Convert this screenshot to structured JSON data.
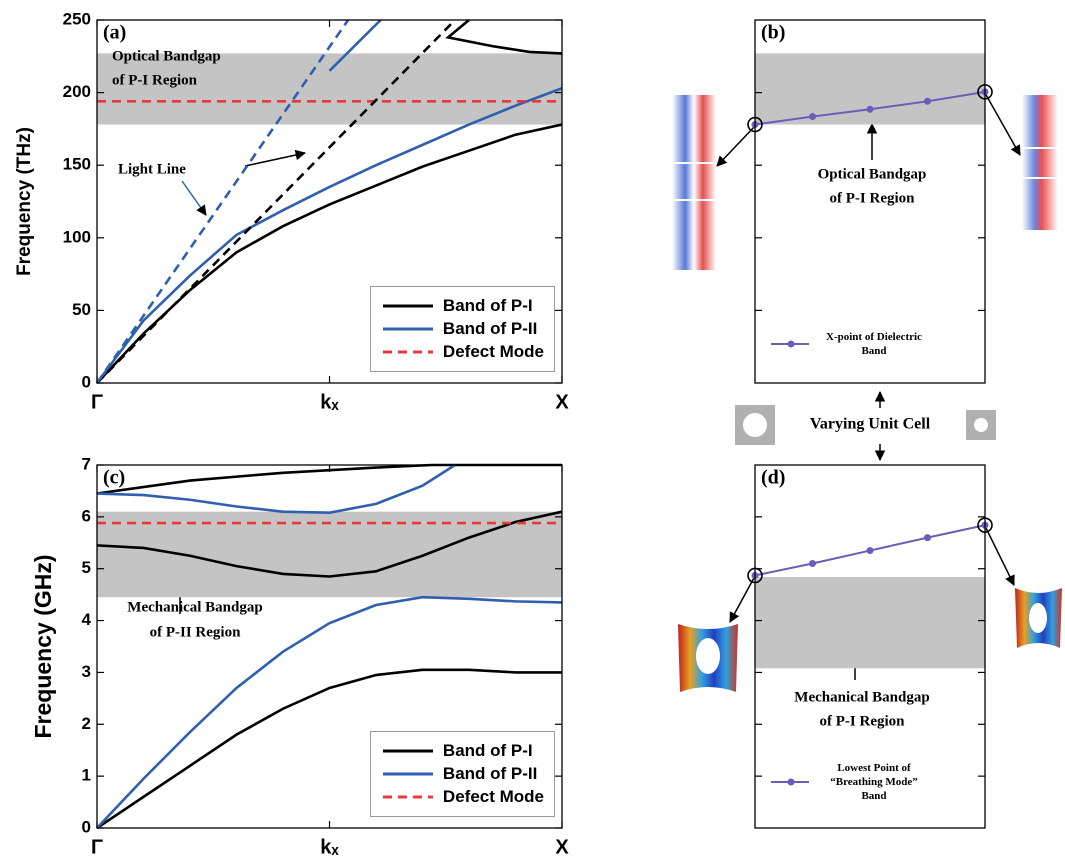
{
  "chart_data": [
    {
      "type": "line",
      "label": "(a)",
      "ylabel": "Frequency (THz)",
      "xlim": [
        0,
        1
      ],
      "xticks": [
        {
          "value": 0,
          "label": "Γ"
        },
        {
          "value": 0.5,
          "label": "kₓ"
        },
        {
          "value": 1,
          "label": "X"
        }
      ],
      "ylim": [
        0,
        250
      ],
      "yticks": [
        0,
        50,
        100,
        150,
        200,
        250
      ],
      "band": [
        178,
        227
      ],
      "band_color": "#c4c4c4",
      "legend": "lower right",
      "legend_frame": true,
      "series": [
        {
          "name": "Band of P-I",
          "color": "#000000",
          "x": [
            0,
            0.1,
            0.2,
            0.3,
            0.4,
            0.5,
            0.6,
            0.7,
            0.8,
            0.9,
            1,
            null,
            0.8,
            0.755,
            0.85,
            0.93,
            1
          ],
          "values": [
            0,
            34,
            64,
            90,
            108,
            123,
            136,
            149,
            160,
            171,
            178,
            null,
            250,
            238,
            232,
            228,
            227
          ]
        },
        {
          "name": "Band of P-II",
          "color": "#2e5fb0",
          "x": [
            0,
            0.1,
            0.2,
            0.3,
            0.4,
            0.5,
            0.6,
            0.7,
            0.8,
            0.9,
            1,
            null,
            0.5,
            0.61
          ],
          "values": [
            0,
            43,
            74,
            102,
            119,
            135,
            150,
            164,
            178,
            191,
            203,
            null,
            215,
            250
          ]
        },
        {
          "name": "Defect Mode",
          "color": "#e8383d",
          "dash": true,
          "x": [
            0,
            1
          ],
          "values": [
            194,
            194
          ]
        },
        {
          "color": "#000000",
          "dash": true,
          "x": [
            0,
            0.77
          ],
          "values": [
            0,
            250
          ]
        },
        {
          "color": "#2e5fb0",
          "dash": true,
          "x": [
            0,
            0.54
          ],
          "values": [
            0,
            250
          ]
        }
      ],
      "annotations": [
        {
          "lines": [
            "Optical Bandgap",
            "of P-I Region"
          ]
        },
        {
          "lines": [
            "Light Line"
          ]
        }
      ]
    },
    {
      "type": "line",
      "label": "(b)",
      "xlim": [
        0,
        1
      ],
      "ylim": [
        0,
        250
      ],
      "yticks": [
        50,
        100,
        150,
        200
      ],
      "show_tick_labels": false,
      "band": [
        178,
        227
      ],
      "band_color": "#c4c4c4",
      "legend": "lower left",
      "legend_frame": false,
      "end_rings": true,
      "series": [
        {
          "name": "X-point of Dielectric Band",
          "color": "#6a5cb8",
          "markers": true,
          "x": [
            0,
            0.25,
            0.5,
            0.75,
            1
          ],
          "values": [
            178,
            183.5,
            188.5,
            194,
            200.5
          ]
        }
      ],
      "annotations": [
        {
          "lines": [
            "Optical Bandgap",
            "of P-I Region"
          ]
        }
      ]
    },
    {
      "type": "line",
      "label": "(c)",
      "ylabel": "Frequency (GHz)",
      "xlim": [
        0,
        1
      ],
      "xticks": [
        {
          "value": 0,
          "label": "Γ"
        },
        {
          "value": 0.5,
          "label": "kₓ"
        },
        {
          "value": 1,
          "label": "X"
        }
      ],
      "ylim": [
        0,
        7
      ],
      "yticks": [
        0,
        1,
        2,
        3,
        4,
        5,
        6,
        7
      ],
      "band": [
        4.45,
        6.1
      ],
      "band_color": "#c4c4c4",
      "legend": "lower right",
      "legend_frame": true,
      "series": [
        {
          "name": "Band of P-I",
          "color": "#000000",
          "x": [
            0,
            0.1,
            0.2,
            0.3,
            0.4,
            0.5,
            0.6,
            0.7,
            0.8,
            0.9,
            1,
            null,
            0,
            0.1,
            0.2,
            0.3,
            0.4,
            0.5,
            0.6,
            0.7,
            0.8,
            0.9,
            1,
            null,
            0,
            0.2,
            0.4,
            0.6,
            0.72,
            1
          ],
          "values": [
            0,
            0.6,
            1.2,
            1.8,
            2.3,
            2.7,
            2.95,
            3.05,
            3.05,
            3.0,
            3.0,
            null,
            5.45,
            5.4,
            5.25,
            5.05,
            4.9,
            4.85,
            4.95,
            5.25,
            5.6,
            5.9,
            6.1,
            null,
            6.45,
            6.7,
            6.85,
            6.95,
            7,
            7
          ]
        },
        {
          "name": "Band of P-II",
          "color": "#2e5fb0",
          "x": [
            0,
            0.1,
            0.2,
            0.3,
            0.4,
            0.5,
            0.6,
            0.7,
            0.8,
            0.9,
            1,
            null,
            0,
            0.1,
            0.2,
            0.3,
            0.4,
            0.5,
            0.6,
            0.7,
            0.77
          ],
          "values": [
            0,
            0.95,
            1.85,
            2.7,
            3.4,
            3.95,
            4.3,
            4.45,
            4.42,
            4.37,
            4.35,
            null,
            6.45,
            6.42,
            6.33,
            6.2,
            6.1,
            6.08,
            6.25,
            6.6,
            7
          ]
        },
        {
          "name": "Defect Mode",
          "color": "#e8383d",
          "dash": true,
          "x": [
            0,
            1
          ],
          "values": [
            5.88,
            5.88
          ]
        }
      ],
      "annotations": [
        {
          "lines": [
            "Mechanical Bandgap",
            "of P-II Region"
          ]
        }
      ]
    },
    {
      "type": "line",
      "label": "(d)",
      "xlim": [
        0,
        1
      ],
      "ylim": [
        0,
        7
      ],
      "yticks": [
        1,
        2,
        3,
        4,
        5,
        6
      ],
      "show_tick_labels": false,
      "band": [
        3.08,
        4.84
      ],
      "band_color": "#c4c4c4",
      "legend": "lower left",
      "legend_frame": false,
      "end_rings": true,
      "series": [
        {
          "name": "Lowest Point of “Breathing Mode” Band",
          "color": "#6a5cb8",
          "markers": true,
          "x": [
            0,
            0.25,
            0.5,
            0.75,
            1
          ],
          "values": [
            4.87,
            5.1,
            5.35,
            5.6,
            5.84
          ]
        }
      ],
      "annotations": [
        {
          "lines": [
            "Mechanical Bandgap",
            "of P-I Region"
          ]
        }
      ]
    }
  ],
  "middle_label": "Varying Unit Cell"
}
